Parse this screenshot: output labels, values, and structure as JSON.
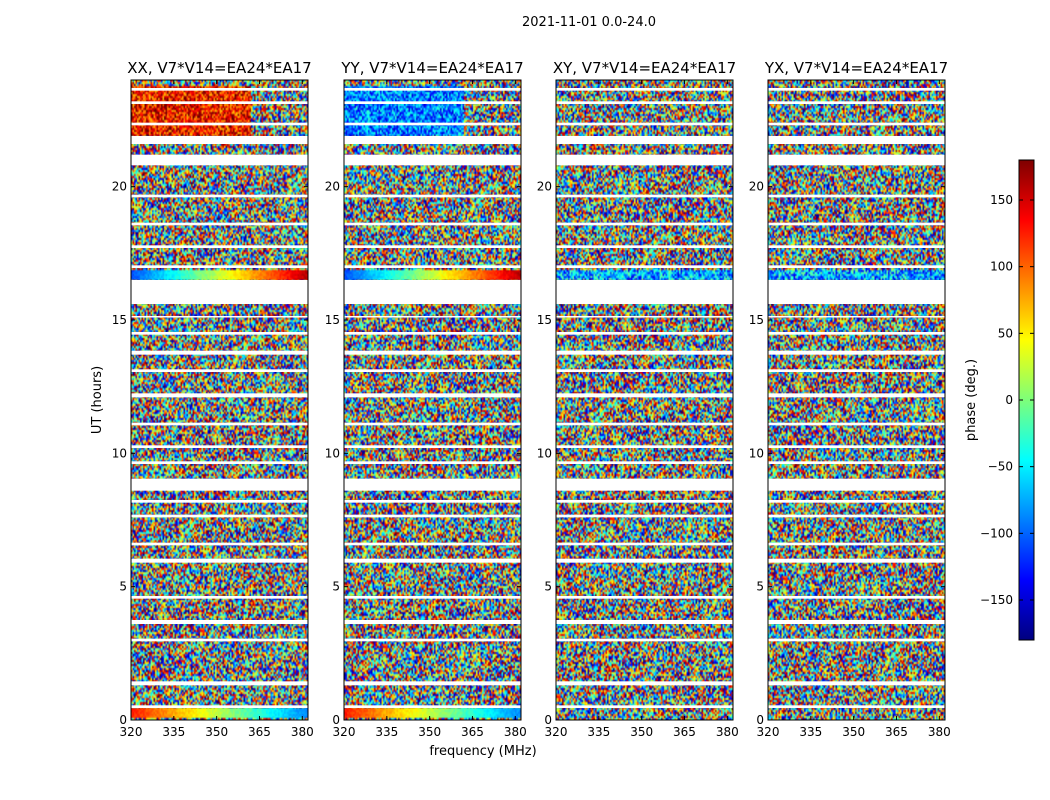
{
  "suptitle": "2021-11-01 0.0-24.0",
  "chart_data": {
    "type": "heatmap",
    "xlabel": "frequency (MHz)",
    "ylabel": "UT (hours)",
    "xlim": [
      320,
      382
    ],
    "ylim": [
      0,
      24
    ],
    "xticks": [
      320,
      335,
      350,
      365,
      380
    ],
    "yticks": [
      0,
      5,
      10,
      15,
      20
    ],
    "colorbar": {
      "label": "phase (deg.)",
      "range": [
        -180,
        180
      ],
      "ticks": [
        150,
        100,
        50,
        0,
        -50,
        -100,
        -150
      ],
      "tick_labels": [
        "150",
        "100",
        "50",
        "0",
        "−50",
        "−100",
        "−150"
      ],
      "colormap_stops": [
        "#00007f",
        "#0000ff",
        "#0080ff",
        "#00ffff",
        "#7dff7a",
        "#ffff00",
        "#ff8000",
        "#ff0000",
        "#7f0000"
      ]
    },
    "panels": [
      {
        "title": "XX, V7*V14=EA24*EA17"
      },
      {
        "title": "YY, V7*V14=EA24*EA17"
      },
      {
        "title": "XY, V7*V14=EA24*EA17"
      },
      {
        "title": "YX, V7*V14=EA24*EA17"
      }
    ],
    "flagged_hours": [
      [
        0.45,
        0.55
      ],
      [
        1.3,
        1.45
      ],
      [
        2.95,
        3.05
      ],
      [
        3.6,
        3.75
      ],
      [
        4.55,
        4.65
      ],
      [
        5.9,
        6.05
      ],
      [
        6.55,
        6.65
      ],
      [
        7.6,
        7.7
      ],
      [
        8.15,
        8.25
      ],
      [
        8.6,
        9.05
      ],
      [
        9.6,
        9.7
      ],
      [
        10.2,
        10.3
      ],
      [
        11.05,
        11.15
      ],
      [
        12.1,
        12.25
      ],
      [
        13.05,
        13.15
      ],
      [
        13.7,
        13.85
      ],
      [
        14.45,
        14.55
      ],
      [
        15.1,
        15.15
      ],
      [
        15.6,
        16.5
      ],
      [
        16.95,
        17.05
      ],
      [
        17.7,
        17.8
      ],
      [
        18.55,
        18.65
      ],
      [
        19.6,
        19.7
      ],
      [
        20.8,
        21.2
      ],
      [
        21.6,
        21.9
      ],
      [
        22.3,
        22.4
      ],
      [
        23.1,
        23.2
      ],
      [
        23.6,
        23.7
      ]
    ]
  }
}
